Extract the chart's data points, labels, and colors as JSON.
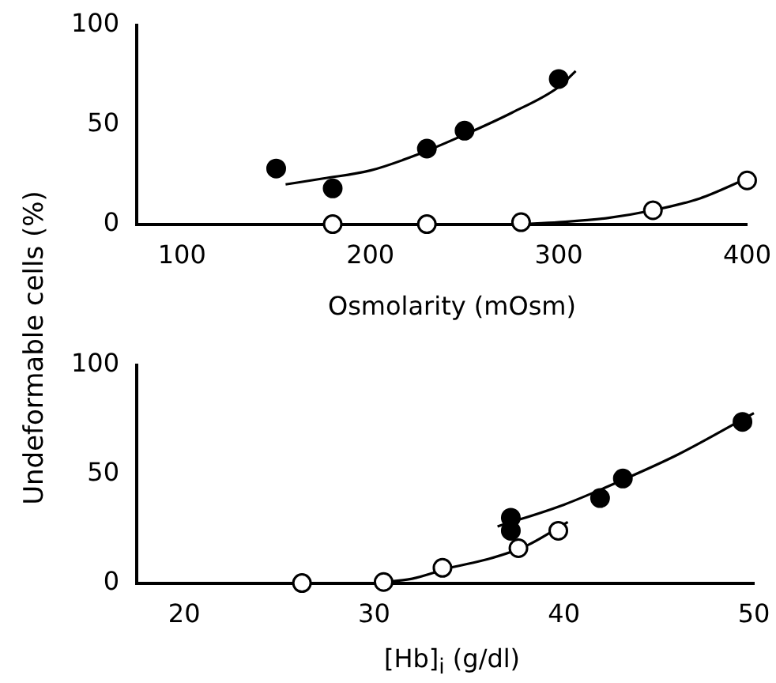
{
  "chart_data": [
    {
      "type": "scatter",
      "xlabel": "Osmolarity (mOsm)",
      "ylabel": "Undeformable cells (%)",
      "xlim": [
        76,
        400
      ],
      "xticks": [
        100,
        200,
        300,
        400
      ],
      "ylim": [
        0,
        100
      ],
      "yticks": [
        0,
        50,
        100
      ],
      "grid": false,
      "marker": "circle",
      "series": [
        {
          "color": "#000000",
          "x": [
            150,
            180,
            230,
            250,
            300
          ],
          "values": [
            28,
            18,
            38,
            47,
            73
          ]
        },
        {
          "color": "#ffffff",
          "x": [
            180,
            230,
            280,
            350,
            400
          ],
          "values": [
            0,
            0,
            1,
            7,
            22
          ]
        },
        {
          "type": "line",
          "marker": "none",
          "color": "#000000",
          "x": [
            155,
            175,
            200,
            225,
            250,
            275,
            300,
            309
          ],
          "values": [
            20,
            23,
            27,
            35,
            45,
            56,
            69,
            77
          ]
        },
        {
          "type": "line",
          "marker": "none",
          "color": "#000000",
          "x": [
            280,
            300,
            325,
            350,
            375,
            400
          ],
          "values": [
            0,
            1,
            3,
            7,
            13,
            23
          ]
        }
      ]
    },
    {
      "type": "scatter",
      "xlabel": "[Hb]$_{i}$ (g/dl)",
      "xlim": [
        17.5,
        50
      ],
      "xticks": [
        20,
        30,
        40,
        50
      ],
      "ylim": [
        0,
        100
      ],
      "yticks": [
        0,
        50,
        100
      ],
      "grid": false,
      "marker": "circle",
      "series": [
        {
          "color": "#000000",
          "x": [
            37.2,
            37.2,
            41.9,
            43.1,
            49.4
          ],
          "values": [
            30,
            24,
            39,
            48,
            74
          ]
        },
        {
          "color": "#ffffff",
          "x": [
            26.2,
            30.5,
            33.6,
            37.6,
            39.7
          ],
          "values": [
            0,
            0.5,
            7,
            16,
            24
          ]
        },
        {
          "type": "line",
          "marker": "none",
          "color": "#000000",
          "x": [
            36.5,
            40,
            43,
            46,
            50
          ],
          "values": [
            26,
            36,
            47,
            59,
            78
          ]
        },
        {
          "type": "line",
          "marker": "none",
          "color": "#000000",
          "x": [
            30,
            32,
            34,
            36,
            38,
            40.2
          ],
          "values": [
            0,
            2,
            7,
            11,
            17,
            28
          ]
        }
      ]
    }
  ]
}
